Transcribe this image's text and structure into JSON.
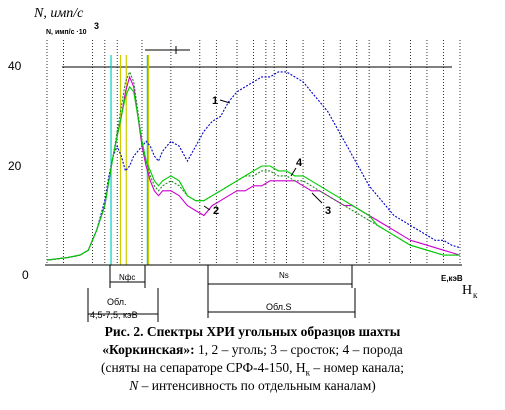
{
  "figure": {
    "y_axis_title": "N, имп/с",
    "y_axis_subtitle": "N, имп/с ·10",
    "y_axis_subtitle_exp": "3",
    "x_axis_end_label": "E,кэВ",
    "x_axis_channel_label": "H",
    "x_axis_channel_sub": "к",
    "region_labels": {
      "nfs": "Nфс",
      "ns": "Ns",
      "obl_fs_line1": "Обл.",
      "obl_fs_line2": "4,5-7,5, кэВ",
      "obl_s": "Обл.S"
    }
  },
  "chart_data": {
    "type": "line",
    "y_ticks": [
      0,
      20,
      40
    ],
    "ylim": [
      0,
      45
    ],
    "x_range": [
      0,
      100
    ],
    "grid": "vertical dotted lines only",
    "series": [
      {
        "name": "1",
        "color": "#0000cc",
        "style": "dotted",
        "x": [
          0,
          5,
          8,
          10,
          12,
          14,
          15,
          16,
          17,
          18,
          19,
          20,
          21,
          22,
          23,
          24,
          25,
          26,
          27,
          28,
          30,
          32,
          34,
          36,
          38,
          40,
          42,
          44,
          46,
          48,
          50,
          52,
          54,
          56,
          58,
          60,
          62,
          64,
          66,
          68,
          70,
          72,
          74,
          76,
          78,
          80,
          82,
          84,
          86,
          88,
          90,
          92,
          94,
          96,
          98,
          100
        ],
        "y": [
          1,
          1.5,
          2,
          3,
          7,
          13,
          18,
          22,
          24,
          22,
          19,
          20,
          22,
          23,
          24,
          25,
          24,
          22,
          21,
          23,
          25,
          24,
          21,
          24,
          27,
          29,
          30,
          33,
          35,
          36,
          37,
          38,
          38,
          39,
          39,
          38,
          37,
          35,
          33,
          31,
          28,
          25,
          22,
          19,
          16,
          14,
          12,
          10,
          9,
          8,
          7,
          6,
          5,
          5,
          4,
          3.5
        ]
      },
      {
        "name": "2",
        "color": "#cc00cc",
        "style": "solid",
        "x": [
          0,
          5,
          8,
          10,
          12,
          14,
          15,
          16,
          17,
          18,
          19,
          20,
          21,
          22,
          23,
          24,
          25,
          26,
          27,
          28,
          30,
          32,
          34,
          36,
          38,
          40,
          42,
          44,
          46,
          48,
          50,
          52,
          54,
          56,
          58,
          60,
          62,
          64,
          66,
          68,
          70,
          72,
          74,
          76,
          78,
          80,
          82,
          84,
          86,
          88,
          90,
          92,
          94,
          96,
          98,
          100
        ],
        "y": [
          1,
          1.5,
          2,
          3,
          7,
          12,
          17,
          22,
          26,
          30,
          35,
          38,
          36,
          30,
          24,
          20,
          17,
          15,
          14,
          15,
          15,
          14,
          12,
          11,
          10,
          12,
          13,
          14,
          15,
          15,
          16,
          16,
          17,
          17,
          17,
          17,
          16,
          15,
          15,
          14,
          13,
          12,
          12,
          11,
          10,
          9,
          8,
          7,
          6,
          5,
          4.5,
          4,
          3.5,
          3,
          2.5,
          2
        ]
      },
      {
        "name": "3",
        "color": "#228822",
        "style": "dotted",
        "x": [
          0,
          5,
          8,
          10,
          12,
          14,
          15,
          16,
          17,
          18,
          19,
          20,
          21,
          22,
          23,
          24,
          25,
          26,
          27,
          28,
          30,
          32,
          34,
          36,
          38,
          40,
          42,
          44,
          46,
          48,
          50,
          52,
          54,
          56,
          58,
          60,
          62,
          64,
          66,
          68,
          70,
          72,
          74,
          76,
          78,
          80,
          82,
          84,
          86,
          88,
          90,
          92,
          94,
          96,
          98,
          100
        ],
        "y": [
          1,
          1.5,
          2,
          3,
          7,
          12,
          17,
          22,
          27,
          32,
          37,
          39,
          37,
          31,
          25,
          21,
          18,
          16,
          15,
          16,
          17,
          16,
          14,
          13,
          13,
          14,
          15,
          16,
          17,
          18,
          18,
          19,
          19,
          18,
          18,
          17,
          17,
          16,
          15,
          14,
          13,
          12,
          11,
          10,
          9,
          8,
          7,
          6,
          5,
          4,
          3.5,
          3,
          2.5,
          2,
          2,
          2
        ]
      },
      {
        "name": "4",
        "color": "#00cc00",
        "style": "solid",
        "x": [
          0,
          5,
          8,
          10,
          12,
          14,
          15,
          16,
          17,
          18,
          19,
          20,
          21,
          22,
          23,
          24,
          25,
          26,
          27,
          28,
          30,
          32,
          34,
          36,
          38,
          40,
          42,
          44,
          46,
          48,
          50,
          52,
          54,
          56,
          58,
          60,
          62,
          64,
          66,
          68,
          70,
          72,
          74,
          76,
          78,
          80,
          82,
          84,
          86,
          88,
          90,
          92,
          94,
          96,
          98,
          100
        ],
        "y": [
          1,
          1.5,
          2,
          3,
          7,
          12,
          17,
          22,
          26,
          30,
          34,
          36,
          35,
          30,
          25,
          21,
          19,
          17,
          16,
          17,
          18,
          17,
          14,
          13,
          13,
          14,
          15,
          16,
          17,
          18,
          19,
          20,
          20,
          19,
          19,
          18,
          18,
          17,
          16,
          15,
          14,
          13,
          12,
          11,
          10,
          8,
          7,
          6,
          5,
          4,
          3.5,
          3,
          2.5,
          2,
          2,
          2
        ]
      }
    ]
  },
  "caption": {
    "line1": "Рис. 2. Спектры ХРИ угольных образцов шахты",
    "line2_bold": "«Коркинская»:",
    "line2_rest": " 1, 2 – уголь; 3 – сросток; 4 – порода",
    "line3": "(сняты на сепараторе СРФ-4-150, H",
    "line3_sub": "к",
    "line3_rest": " – номер канала;",
    "line4_italic": "N",
    "line4_rest": " – интенсивность по отдельным каналам)"
  }
}
